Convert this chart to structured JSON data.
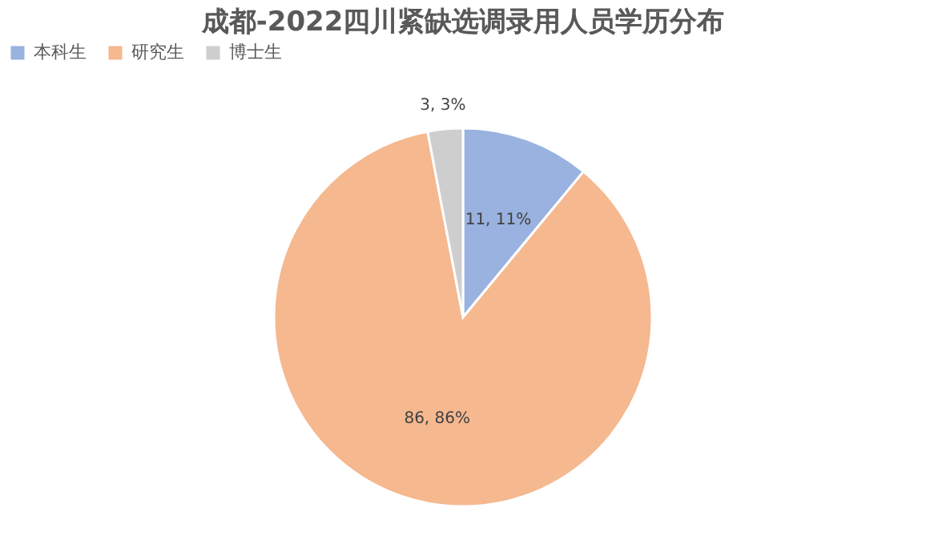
{
  "chart_data": {
    "type": "pie",
    "title": "成都-2022四川紧缺选调录用人员学历分布",
    "categories": [
      "本科生",
      "研究生",
      "博士生"
    ],
    "values": [
      11,
      86,
      3
    ],
    "colors": [
      "#8faadc",
      "#f4b183",
      "#c9c9c9"
    ],
    "value_labels": [
      "11, 11%",
      "86, 86%",
      "3, 3%"
    ],
    "legend": "top"
  }
}
